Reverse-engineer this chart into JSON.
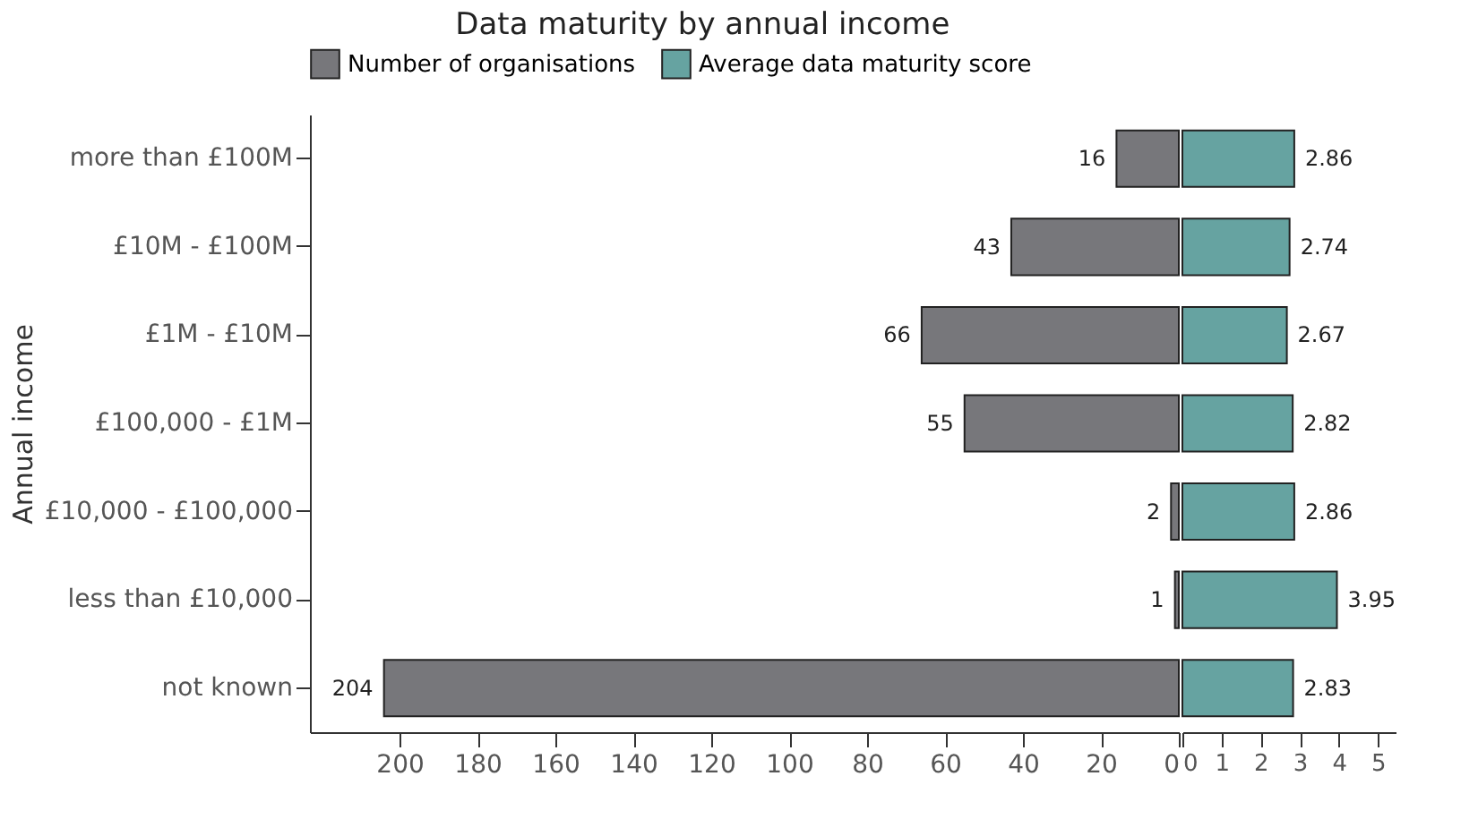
{
  "chart_data": [
    {
      "type": "bar",
      "orientation": "horizontal",
      "title": "Data maturity by annual income",
      "ylabel": "Annual income",
      "categories": [
        "more than £100M",
        "£10M - £100M",
        "£1M - £10M",
        "£100,000 - £1M",
        "£10,000 - £100,000",
        "less than £10,000",
        "not known"
      ],
      "series": [
        {
          "name": "Number of organisations",
          "color": "#77777b",
          "values": [
            16,
            43,
            66,
            55,
            2,
            1,
            204
          ]
        }
      ],
      "xlim": [
        223,
        0
      ],
      "xticks": [
        200,
        180,
        160,
        140,
        120,
        100,
        80,
        60,
        40,
        20,
        0
      ],
      "data_labels": true,
      "legend": "top",
      "grid": false
    },
    {
      "type": "bar",
      "orientation": "horizontal",
      "series": [
        {
          "name": "Average data maturity score",
          "color": "#66a3a1",
          "values": [
            2.86,
            2.74,
            2.67,
            2.82,
            2.86,
            3.95,
            2.83
          ]
        }
      ],
      "xlim": [
        0,
        5.45
      ],
      "xticks": [
        0,
        1,
        2,
        3,
        4,
        5
      ],
      "data_labels": true,
      "tick_labels": "x",
      "grid": false
    }
  ]
}
